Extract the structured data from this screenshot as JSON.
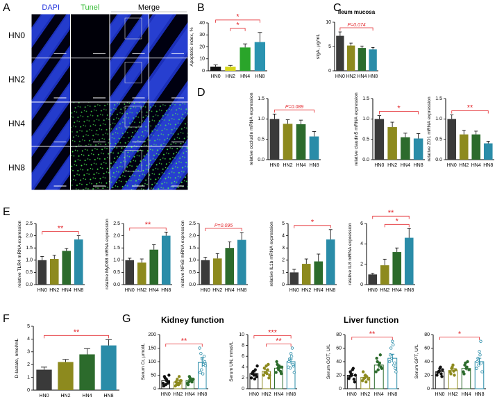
{
  "panel_labels": [
    "A",
    "B",
    "C",
    "D",
    "E",
    "F",
    "G"
  ],
  "panel_a": {
    "columns": [
      "DAPI",
      "Tunel",
      "Merge"
    ],
    "rows": [
      "HN0",
      "HN2",
      "HN4",
      "HN8"
    ]
  },
  "group_titles": [
    "Kidney function",
    "Liver function"
  ],
  "significance_color": "#e3262b",
  "chart_data": [
    {
      "type": "bar",
      "ylabel": "Apoptotic index, %",
      "categories": [
        "HN0",
        "HN2",
        "HN4",
        "HN8"
      ],
      "values": [
        3.5,
        3.5,
        19.5,
        24
      ],
      "errors": [
        1.5,
        1,
        3,
        8
      ],
      "colors": [
        "#111111",
        "#d8d61c",
        "#2aa52a",
        "#2a93b0"
      ],
      "ylim": [
        0,
        40
      ],
      "yticks": [
        0,
        10,
        20,
        30,
        40
      ],
      "annotations": [
        {
          "text": "*",
          "between": [
            "HN2",
            "HN4"
          ]
        },
        {
          "text": "*",
          "between": [
            "HN0",
            "HN8"
          ]
        }
      ]
    },
    {
      "type": "bar",
      "title": "ileum mucosa",
      "ylabel": "sIgA, μg/mL",
      "categories": [
        "HN0",
        "HN2",
        "HN4",
        "HN8"
      ],
      "values": [
        7.2,
        5.2,
        4.7,
        4.4
      ],
      "errors": [
        0.8,
        0.5,
        0.4,
        0.4
      ],
      "colors": [
        "#3a3a3a",
        "#8d8a1e",
        "#2c6b2c",
        "#2a8ca8"
      ],
      "ylim": [
        0,
        10
      ],
      "yticks": [
        0,
        5,
        10
      ],
      "annotations": [
        {
          "text": "P=0.074",
          "between": [
            "HN0",
            "HN8"
          ]
        }
      ]
    },
    {
      "type": "bar",
      "ylabel": "relative occludin mRNA expression",
      "categories": [
        "HN0",
        "HN2",
        "HN4",
        "HN8"
      ],
      "values": [
        1.0,
        0.88,
        0.87,
        0.57
      ],
      "errors": [
        0.12,
        0.1,
        0.1,
        0.12
      ],
      "colors": [
        "#3a3a3a",
        "#8d8a1e",
        "#2c6b2c",
        "#2a8ca8"
      ],
      "ylim": [
        0,
        1.5
      ],
      "yticks": [
        {
          "value": 0,
          "label": "0.0"
        },
        {
          "value": 0.5,
          "label": "0.5"
        },
        {
          "value": 1,
          "label": "1.0"
        },
        {
          "value": 1.5,
          "label": "1.5"
        }
      ],
      "annotations": [
        {
          "text": "P=0.089",
          "between": [
            "HN0",
            "HN8"
          ]
        }
      ]
    },
    {
      "type": "bar",
      "ylabel": "relative claudin5 mRNA expression",
      "categories": [
        "HN0",
        "HN2",
        "HN4",
        "HN8"
      ],
      "values": [
        1.0,
        0.8,
        0.55,
        0.52
      ],
      "errors": [
        0.08,
        0.12,
        0.1,
        0.12
      ],
      "colors": [
        "#3a3a3a",
        "#8d8a1e",
        "#2c6b2c",
        "#2a8ca8"
      ],
      "ylim": [
        0,
        1.5
      ],
      "yticks": [
        {
          "value": 0,
          "label": "0.0"
        },
        {
          "value": 0.5,
          "label": "0.5"
        },
        {
          "value": 1,
          "label": "1.0"
        },
        {
          "value": 1.5,
          "label": "1.5"
        }
      ],
      "annotations": [
        {
          "text": "*",
          "between": [
            "HN0",
            "HN8"
          ]
        }
      ]
    },
    {
      "type": "bar",
      "ylabel": "relative ZO1 mRNA expression",
      "categories": [
        "HN0",
        "HN2",
        "HN4",
        "HN8"
      ],
      "values": [
        1.0,
        0.62,
        0.62,
        0.4
      ],
      "errors": [
        0.1,
        0.1,
        0.08,
        0.05
      ],
      "colors": [
        "#3a3a3a",
        "#8d8a1e",
        "#2c6b2c",
        "#2a8ca8"
      ],
      "ylim": [
        0,
        1.5
      ],
      "yticks": [
        {
          "value": 0,
          "label": "0.0"
        },
        {
          "value": 0.5,
          "label": "0.5"
        },
        {
          "value": 1,
          "label": "1.0"
        },
        {
          "value": 1.5,
          "label": "1.5"
        }
      ],
      "annotations": [
        {
          "text": "**",
          "between": [
            "HN0",
            "HN8"
          ]
        }
      ]
    },
    {
      "type": "bar",
      "ylabel": "relative TLR4 mRNA expression",
      "categories": [
        "HN0",
        "HN2",
        "HN4",
        "HN8"
      ],
      "values": [
        1.0,
        1.05,
        1.38,
        1.85
      ],
      "errors": [
        0.15,
        0.15,
        0.1,
        0.15
      ],
      "colors": [
        "#3a3a3a",
        "#8d8a1e",
        "#2c6b2c",
        "#2a8ca8"
      ],
      "ylim": [
        0,
        2.5
      ],
      "yticks": [
        {
          "value": 0,
          "label": "0.0"
        },
        {
          "value": 0.5,
          "label": "0.5"
        },
        {
          "value": 1,
          "label": "1.0"
        },
        {
          "value": 1.5,
          "label": "1.5"
        },
        {
          "value": 2,
          "label": "2.0"
        },
        {
          "value": 2.5,
          "label": "2.5"
        }
      ],
      "annotations": [
        {
          "text": "**",
          "between": [
            "HN0",
            "HN8"
          ]
        }
      ]
    },
    {
      "type": "bar",
      "ylabel": "relative MyD88 mRNA expression",
      "categories": [
        "HN0",
        "HN2",
        "HN4",
        "HN8"
      ],
      "values": [
        1.0,
        0.9,
        1.43,
        2.0
      ],
      "errors": [
        0.08,
        0.15,
        0.2,
        0.15
      ],
      "colors": [
        "#3a3a3a",
        "#8d8a1e",
        "#2c6b2c",
        "#2a8ca8"
      ],
      "ylim": [
        0,
        2.5
      ],
      "yticks": [
        {
          "value": 0,
          "label": "0.0"
        },
        {
          "value": 0.5,
          "label": "0.5"
        },
        {
          "value": 1,
          "label": "1.0"
        },
        {
          "value": 1.5,
          "label": "1.5"
        },
        {
          "value": 2,
          "label": "2.0"
        },
        {
          "value": 2.5,
          "label": "2.5"
        }
      ],
      "annotations": [
        {
          "text": "**",
          "between": [
            "HN0",
            "HN8"
          ]
        }
      ]
    },
    {
      "type": "bar",
      "ylabel": "relative NFkB mRNA expression",
      "categories": [
        "HN0",
        "HN2",
        "HN4",
        "HN8"
      ],
      "values": [
        1.0,
        1.07,
        1.5,
        1.83
      ],
      "errors": [
        0.12,
        0.2,
        0.25,
        0.3
      ],
      "colors": [
        "#3a3a3a",
        "#8d8a1e",
        "#2c6b2c",
        "#2a8ca8"
      ],
      "ylim": [
        0,
        2.5
      ],
      "yticks": [
        {
          "value": 0,
          "label": "0.0"
        },
        {
          "value": 0.5,
          "label": "0.5"
        },
        {
          "value": 1,
          "label": "1.0"
        },
        {
          "value": 1.5,
          "label": "1.5"
        },
        {
          "value": 2,
          "label": "2.0"
        },
        {
          "value": 2.5,
          "label": "2.5"
        }
      ],
      "annotations": [
        {
          "text": "P=0.095",
          "between": [
            "HN0",
            "HN8"
          ]
        }
      ]
    },
    {
      "type": "bar",
      "ylabel": "relative IL1b mRNA expression",
      "categories": [
        "HN0",
        "HN2",
        "HN4",
        "HN8"
      ],
      "values": [
        1.0,
        1.7,
        1.9,
        3.7
      ],
      "errors": [
        0.25,
        0.4,
        0.6,
        0.8
      ],
      "colors": [
        "#3a3a3a",
        "#8d8a1e",
        "#2c6b2c",
        "#2a8ca8"
      ],
      "ylim": [
        0,
        5
      ],
      "yticks": [
        0,
        1,
        2,
        3,
        4,
        5
      ],
      "annotations": [
        {
          "text": "*",
          "between": [
            "HN0",
            "HN8"
          ]
        }
      ]
    },
    {
      "type": "bar",
      "ylabel": "relative IL8 mRNA expression",
      "categories": [
        "HN0",
        "HN2",
        "HN4",
        "HN8"
      ],
      "values": [
        1.0,
        1.9,
        3.2,
        4.6
      ],
      "errors": [
        0.1,
        0.6,
        0.4,
        0.9
      ],
      "colors": [
        "#3a3a3a",
        "#8d8a1e",
        "#2c6b2c",
        "#2a8ca8"
      ],
      "ylim": [
        0,
        6
      ],
      "yticks": [
        0,
        2,
        4,
        6
      ],
      "annotations": [
        {
          "text": "*",
          "between": [
            "HN2",
            "HN8"
          ]
        },
        {
          "text": "**",
          "between": [
            "HN0",
            "HN8"
          ]
        }
      ]
    },
    {
      "type": "bar",
      "ylabel": "D-lactate, nmol/mL",
      "categories": [
        "HN0",
        "HN2",
        "HN4",
        "HN8"
      ],
      "values": [
        1.6,
        2.2,
        2.8,
        3.5
      ],
      "errors": [
        0.2,
        0.2,
        0.45,
        0.45
      ],
      "colors": [
        "#3a3a3a",
        "#8d8a1e",
        "#2c6b2c",
        "#2a8ca8"
      ],
      "ylim": [
        0,
        5
      ],
      "yticks": [
        0,
        1,
        2,
        3,
        4,
        5
      ],
      "annotations": [
        {
          "text": "**",
          "between": [
            "HN0",
            "HN8"
          ]
        }
      ]
    },
    {
      "type": "scatter_bar",
      "ylabel": "Serum Cr, μmol/L",
      "categories": [
        "HN0",
        "HN2",
        "HN4",
        "HN8"
      ],
      "values": [
        30,
        25,
        30,
        97
      ],
      "errors": [
        6,
        5,
        4,
        18
      ],
      "points": [
        [
          20,
          45,
          15,
          30,
          25,
          10,
          40,
          35,
          20,
          50
        ],
        [
          10,
          15,
          20,
          45,
          30,
          25,
          35,
          15,
          20,
          30
        ],
        [
          20,
          25,
          40,
          30,
          35,
          15,
          45,
          30,
          25,
          35
        ],
        [
          150,
          130,
          110,
          90,
          100,
          60,
          70,
          55,
          120,
          85
        ]
      ],
      "colors": [
        "#111111",
        "#8d8a1e",
        "#2c6b2c",
        "#2a8ca8"
      ],
      "ylim": [
        0,
        200
      ],
      "yticks": [
        0,
        50,
        100,
        150,
        200
      ],
      "annotations": [
        {
          "text": "**",
          "between": [
            "HN0",
            "HN8"
          ]
        }
      ]
    },
    {
      "type": "scatter_bar",
      "ylabel": "Serum UN, mmol/L",
      "categories": [
        "HN0",
        "HN2",
        "HN4",
        "HN8"
      ],
      "values": [
        2.8,
        3.2,
        3.8,
        5.0
      ],
      "errors": [
        0.3,
        0.3,
        0.3,
        0.5
      ],
      "points": [
        [
          2.0,
          3.0,
          2.5,
          3.5,
          2.2,
          2.8,
          3.2,
          1.8,
          2.6,
          4.2
        ],
        [
          2.5,
          3.0,
          4.2,
          3.5,
          2.0,
          3.8,
          3.0,
          2.8,
          4.5,
          2.5
        ],
        [
          3.0,
          4.5,
          3.5,
          4.0,
          2.8,
          5.0,
          3.8,
          4.2,
          3.2,
          4.0
        ],
        [
          4.0,
          5.5,
          6.5,
          7.5,
          4.2,
          5.0,
          3.8,
          6.0,
          4.5,
          3.0
        ]
      ],
      "colors": [
        "#111111",
        "#8d8a1e",
        "#2c6b2c",
        "#2a8ca8"
      ],
      "ylim": [
        0,
        10
      ],
      "yticks": [
        0,
        2,
        4,
        6,
        8,
        10
      ],
      "annotations": [
        {
          "text": "**",
          "between": [
            "HN2",
            "HN8"
          ]
        },
        {
          "text": "***",
          "between": [
            "HN0",
            "HN8"
          ]
        }
      ]
    },
    {
      "type": "scatter_bar",
      "ylabel": "Serum GOT, U/L",
      "categories": [
        "HN0",
        "HN2",
        "HN4",
        "HN8"
      ],
      "values": [
        20,
        17,
        35,
        45
      ],
      "errors": [
        3,
        2,
        4,
        6
      ],
      "points": [
        [
          15,
          25,
          20,
          30,
          10,
          18,
          22,
          28,
          14,
          20
        ],
        [
          12,
          15,
          20,
          18,
          14,
          25,
          16,
          10
        ],
        [
          25,
          40,
          35,
          50,
          30,
          45,
          28,
          38,
          32
        ],
        [
          40,
          60,
          70,
          35,
          30,
          50,
          45,
          65,
          38,
          25
        ]
      ],
      "colors": [
        "#111111",
        "#8d8a1e",
        "#2c6b2c",
        "#2a8ca8"
      ],
      "ylim": [
        0,
        80
      ],
      "yticks": [
        0,
        20,
        40,
        60,
        80
      ],
      "annotations": [
        {
          "text": "**",
          "between": [
            "HN0",
            "HN8"
          ]
        }
      ]
    },
    {
      "type": "scatter_bar",
      "ylabel": "Serum GPT, U/L",
      "categories": [
        "HN0",
        "HN2",
        "HN4",
        "HN8"
      ],
      "values": [
        25,
        27,
        30,
        40
      ],
      "errors": [
        2,
        3,
        3,
        5
      ],
      "points": [
        [
          20,
          25,
          30,
          22,
          28,
          24,
          26,
          32,
          18
        ],
        [
          25,
          30,
          35,
          20,
          28,
          22,
          32,
          26
        ],
        [
          25,
          35,
          30,
          40,
          28,
          22,
          38,
          32
        ],
        [
          30,
          45,
          55,
          70,
          25,
          40,
          35,
          50,
          38
        ]
      ],
      "colors": [
        "#111111",
        "#8d8a1e",
        "#2c6b2c",
        "#2a8ca8"
      ],
      "ylim": [
        0,
        80
      ],
      "yticks": [
        0,
        20,
        40,
        60,
        80
      ],
      "annotations": [
        {
          "text": "*",
          "between": [
            "HN0",
            "HN8"
          ]
        }
      ]
    }
  ]
}
